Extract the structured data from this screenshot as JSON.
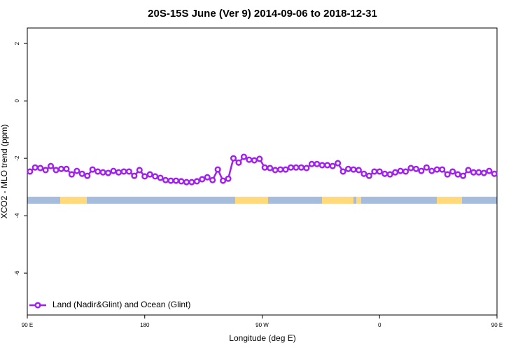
{
  "chart_data": {
    "type": "line",
    "title": "20S-15S June (Ver 9)   2014-09-06 to 2018-12-31",
    "xlabel": "Longitude (deg E)",
    "ylabel": "XCO2 - MLO trend (ppm)",
    "x": [
      92,
      96,
      100,
      104,
      108,
      112,
      116,
      120,
      124,
      128,
      132,
      136,
      140,
      144,
      148,
      152,
      156,
      160,
      164,
      168,
      172,
      176,
      180,
      184,
      188,
      192,
      196,
      200,
      204,
      208,
      212,
      216,
      220,
      224,
      228,
      232,
      236,
      240,
      244,
      248,
      252,
      256,
      260,
      264,
      268,
      272,
      276,
      280,
      284,
      288,
      292,
      296,
      300,
      304,
      308,
      312,
      316,
      320,
      324,
      328,
      332,
      336,
      340,
      344,
      348,
      352,
      356,
      360,
      364,
      368,
      372,
      376,
      380,
      384,
      388,
      392,
      396,
      400,
      404,
      408,
      412,
      416,
      420,
      424,
      428,
      432,
      436,
      440,
      444,
      448
    ],
    "series": [
      {
        "name": "Land (Nadir&Glint) and Ocean (Glint)",
        "color": "#a020f0",
        "values": [
          -2.46,
          -2.32,
          -2.34,
          -2.41,
          -2.27,
          -2.41,
          -2.37,
          -2.37,
          -2.56,
          -2.44,
          -2.54,
          -2.61,
          -2.39,
          -2.46,
          -2.49,
          -2.51,
          -2.44,
          -2.49,
          -2.46,
          -2.46,
          -2.61,
          -2.41,
          -2.63,
          -2.56,
          -2.63,
          -2.68,
          -2.76,
          -2.78,
          -2.78,
          -2.8,
          -2.83,
          -2.83,
          -2.8,
          -2.73,
          -2.66,
          -2.76,
          -2.39,
          -2.78,
          -2.71,
          -2.0,
          -2.15,
          -1.95,
          -2.05,
          -2.07,
          -2.02,
          -2.32,
          -2.34,
          -2.41,
          -2.39,
          -2.39,
          -2.32,
          -2.32,
          -2.32,
          -2.34,
          -2.2,
          -2.2,
          -2.24,
          -2.24,
          -2.27,
          -2.17,
          -2.46,
          -2.37,
          -2.39,
          -2.41,
          -2.54,
          -2.61,
          -2.46,
          -2.46,
          -2.54,
          -2.56,
          -2.49,
          -2.44,
          -2.46,
          -2.34,
          -2.37,
          -2.44,
          -2.32,
          -2.44,
          -2.39,
          -2.39,
          -2.56,
          -2.46,
          -2.56,
          -2.61,
          -2.41,
          -2.49,
          -2.49,
          -2.51,
          -2.44,
          -2.54
        ]
      }
    ],
    "xlim": [
      90,
      450
    ],
    "xticks": [
      {
        "value": 90,
        "label": "90 E"
      },
      {
        "value": 180,
        "label": "180"
      },
      {
        "value": 270,
        "label": "90 W"
      },
      {
        "value": 360,
        "label": "0"
      },
      {
        "value": 450,
        "label": "90 E"
      }
    ],
    "ylim": [
      -7.46,
      2.54
    ],
    "yticks": [
      2,
      0,
      -2,
      -4,
      -6
    ],
    "legend": "bottomleft"
  }
}
